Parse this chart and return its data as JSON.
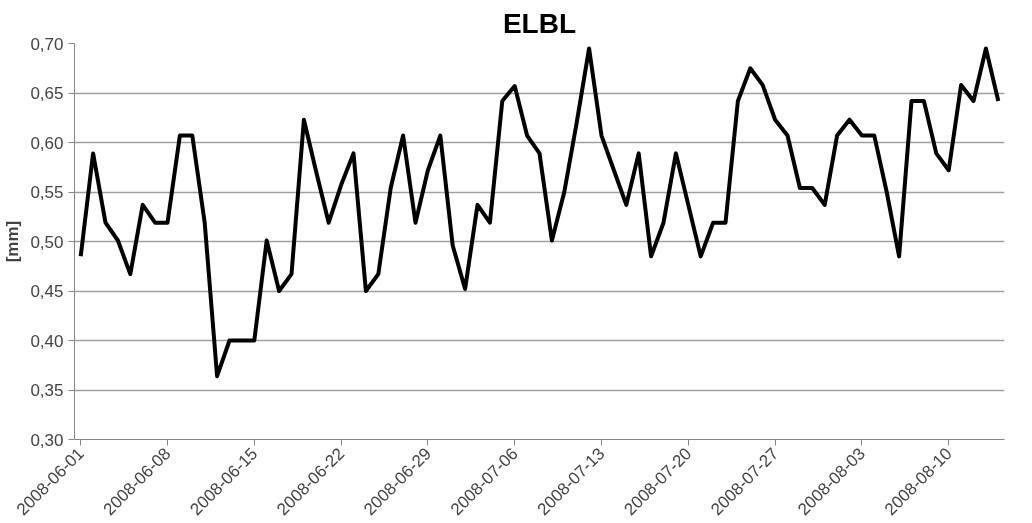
{
  "chart_data": {
    "type": "line",
    "title": "ELBL",
    "ylabel": "[mm]",
    "categories": [
      "2008-06-01",
      null,
      null,
      null,
      null,
      null,
      null,
      "2008-06-08",
      null,
      null,
      null,
      null,
      null,
      null,
      "2008-06-15",
      null,
      null,
      null,
      null,
      null,
      null,
      "2008-06-22",
      null,
      null,
      null,
      null,
      null,
      null,
      "2008-06-29",
      null,
      null,
      null,
      null,
      null,
      null,
      "2008-07-06",
      null,
      null,
      null,
      null,
      null,
      null,
      "2008-07-13",
      null,
      null,
      null,
      null,
      null,
      null,
      "2008-07-20",
      null,
      null,
      null,
      null,
      null,
      null,
      "2008-07-27",
      null,
      null,
      null,
      null,
      null,
      null,
      "2008-08-03",
      null,
      null,
      null,
      null,
      null,
      null,
      "2008-08-10",
      null,
      null,
      null,
      null
    ],
    "series": [
      {
        "color": "#000000",
        "values": [
          0.485,
          0.589,
          0.519,
          0.501,
          0.467,
          0.537,
          0.519,
          0.519,
          0.607,
          0.607,
          0.519,
          0.364,
          0.4,
          0.4,
          0.4,
          0.501,
          0.45,
          0.467,
          0.623,
          0.57,
          0.519,
          0.557,
          0.589,
          0.45,
          0.467,
          0.554,
          0.607,
          0.519,
          0.572,
          0.607,
          0.496,
          0.452,
          0.537,
          0.519,
          0.642,
          0.657,
          0.607,
          0.589,
          0.501,
          0.55,
          0.62,
          0.695,
          0.607,
          0.572,
          0.537,
          0.589,
          0.485,
          0.519,
          0.589,
          0.537,
          0.485,
          0.519,
          0.519,
          0.642,
          0.675,
          0.658,
          0.623,
          0.607,
          0.554,
          0.554,
          0.537,
          0.607,
          0.623,
          0.607,
          0.607,
          0.55,
          0.485,
          0.642,
          0.642,
          0.589,
          0.572,
          0.658,
          0.642,
          0.695,
          0.642
        ]
      }
    ],
    "ylim": [
      0.3,
      0.7
    ],
    "yticks": [
      {
        "value": 0.3,
        "label": "0,30"
      },
      {
        "value": 0.35,
        "label": "0,35"
      },
      {
        "value": 0.4,
        "label": "0,40"
      },
      {
        "value": 0.45,
        "label": "0,45"
      },
      {
        "value": 0.5,
        "label": "0,50"
      },
      {
        "value": 0.55,
        "label": "0,55"
      },
      {
        "value": 0.6,
        "label": "0,60"
      },
      {
        "value": 0.65,
        "label": "0,65"
      },
      {
        "value": 0.7,
        "label": "0,70"
      }
    ],
    "grid": "y",
    "marker": "none",
    "line_style": "solid"
  }
}
